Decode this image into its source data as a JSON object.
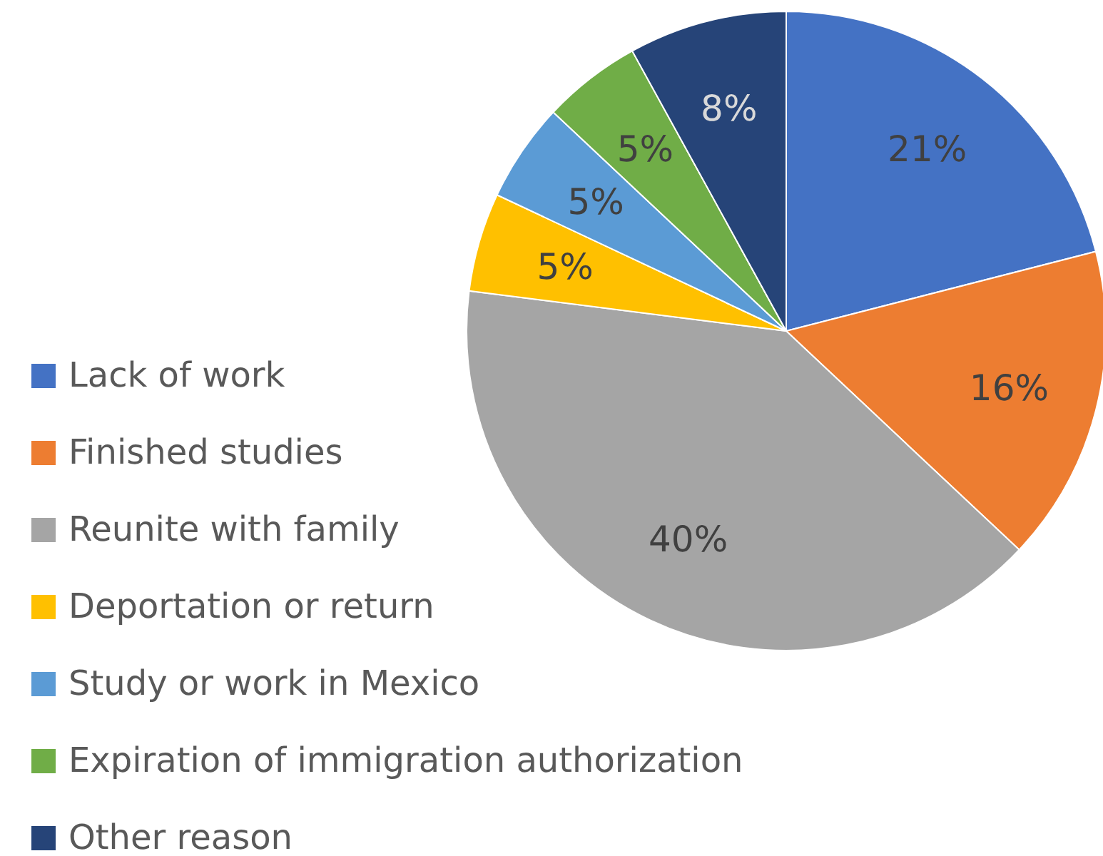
{
  "chart_data": {
    "type": "pie",
    "categories": [
      "Lack of work",
      "Finished studies",
      "Reunite with family",
      "Deportation or return",
      "Study or work in Mexico",
      "Expiration of immigration authorization",
      "Other reason"
    ],
    "values": [
      21,
      16,
      40,
      5,
      5,
      5,
      8
    ],
    "colors": [
      "#4472c4",
      "#ed7d31",
      "#a5a5a5",
      "#ffc000",
      "#5b9bd5",
      "#70ad47",
      "#264478"
    ],
    "value_labels": [
      "21%",
      "16%",
      "40%",
      "5%",
      "5%",
      "5%",
      "8%"
    ],
    "legend": "left"
  }
}
